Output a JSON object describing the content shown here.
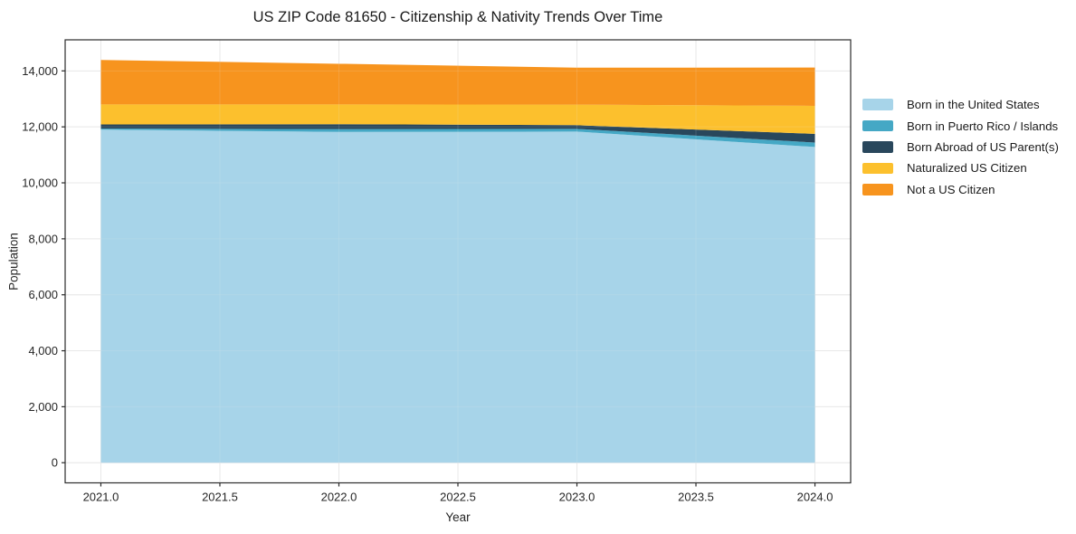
{
  "page": {
    "background": "#ffffff"
  },
  "chart_data": {
    "type": "area",
    "stacked": true,
    "title": "US ZIP Code 81650 - Citizenship & Nativity Trends Over Time",
    "xlabel": "Year",
    "ylabel": "Population",
    "x": [
      2021.0,
      2022.0,
      2023.0,
      2024.0
    ],
    "series": [
      {
        "name": "Born in the United States",
        "color": "#a7d4e9",
        "values": [
          11900,
          11820,
          11830,
          11280
        ]
      },
      {
        "name": "Born in Puerto Rico / Islands",
        "color": "#45a8c5",
        "values": [
          40,
          100,
          100,
          160
        ]
      },
      {
        "name": "Born Abroad of US Parent(s)",
        "color": "#29475c",
        "values": [
          145,
          175,
          130,
          310
        ]
      },
      {
        "name": "Naturalized US Citizen",
        "color": "#fcc02d",
        "values": [
          715,
          705,
          735,
          1000
        ]
      },
      {
        "name": "Not a US Citizen",
        "color": "#f7941e",
        "values": [
          1590,
          1455,
          1320,
          1370
        ]
      }
    ],
    "stack_totals": [
      14390,
      14255,
      14115,
      14120
    ],
    "xlim": [
      2020.85,
      2024.15
    ],
    "ylim": [
      -720,
      15110
    ],
    "x_ticks": {
      "values": [
        2021.0,
        2021.5,
        2022.0,
        2022.5,
        2023.0,
        2023.5,
        2024.0
      ],
      "labels": [
        "2021.0",
        "2021.5",
        "2022.0",
        "2022.5",
        "2023.0",
        "2023.5",
        "2024.0"
      ]
    },
    "y_ticks": {
      "values": [
        0,
        2000,
        4000,
        6000,
        8000,
        10000,
        12000,
        14000
      ],
      "labels": [
        "0",
        "2,000",
        "4,000",
        "6,000",
        "8,000",
        "10,000",
        "12,000",
        "14,000"
      ]
    },
    "grid": true,
    "legend_position": "outside-right-top",
    "styles": {
      "grid_color": "#e8e8e8",
      "spine_color": "#2b2b2b",
      "tick_text_color": "#262626",
      "title_color": "#1a1a1a",
      "background": "#ffffff"
    }
  }
}
